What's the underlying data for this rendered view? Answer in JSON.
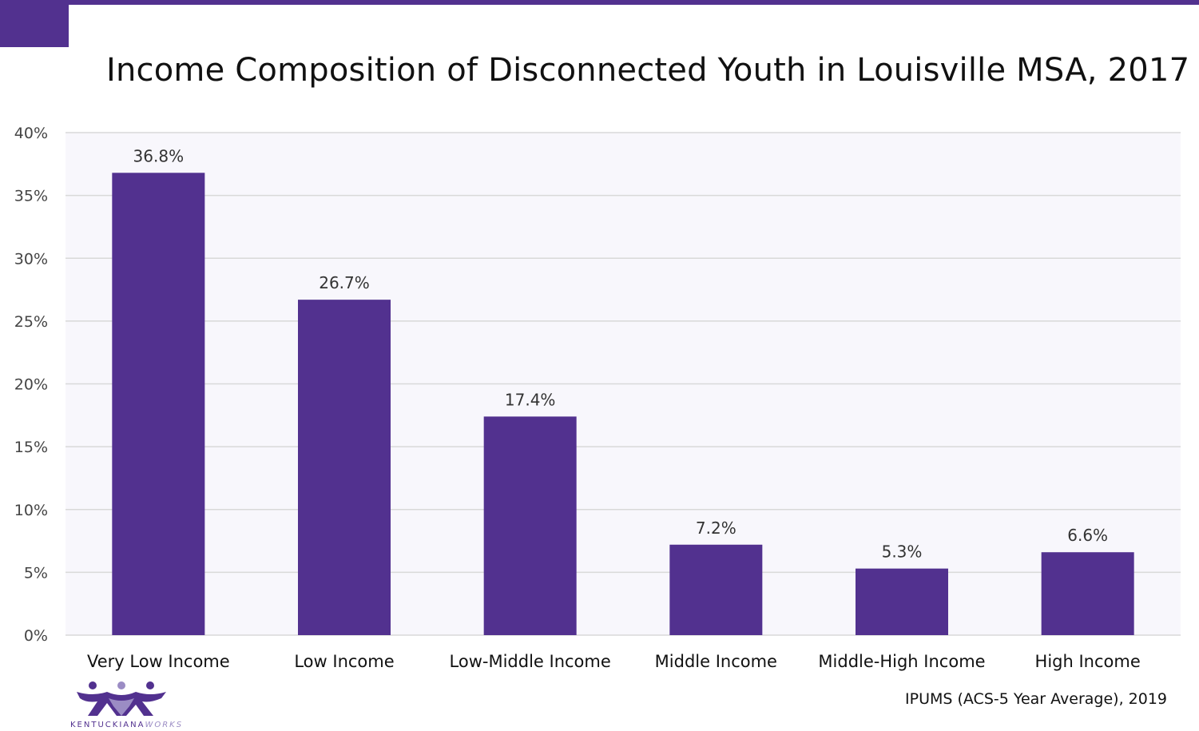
{
  "title": "Income Composition of Disconnected Youth in Louisville MSA, 2017",
  "source": "IPUMS (ACS-5 Year Average), 2019",
  "logo": {
    "text_main": "KENTUCKIANA",
    "text_accent": "WORKS"
  },
  "colors": {
    "bar": "#52318f",
    "plot_background": "#f8f7fc",
    "grid": "#d9d9d9",
    "accent": "#52318f"
  },
  "chart_data": {
    "type": "bar",
    "title": "Income Composition of Disconnected Youth in Louisville MSA, 2017",
    "categories": [
      "Very Low Income",
      "Low Income",
      "Low-Middle Income",
      "Middle Income",
      "Middle-High Income",
      "High Income"
    ],
    "values": [
      36.8,
      26.7,
      17.4,
      7.2,
      5.3,
      6.6
    ],
    "value_labels": [
      "36.8%",
      "26.7%",
      "17.4%",
      "7.2%",
      "5.3%",
      "6.6%"
    ],
    "xlabel": "",
    "ylabel": "",
    "ylim": [
      0,
      40
    ],
    "yticks": [
      0,
      5,
      10,
      15,
      20,
      25,
      30,
      35,
      40
    ],
    "ytick_labels": [
      "0%",
      "5%",
      "10%",
      "15%",
      "20%",
      "25%",
      "30%",
      "35%",
      "40%"
    ],
    "grid": true,
    "legend": "none"
  }
}
